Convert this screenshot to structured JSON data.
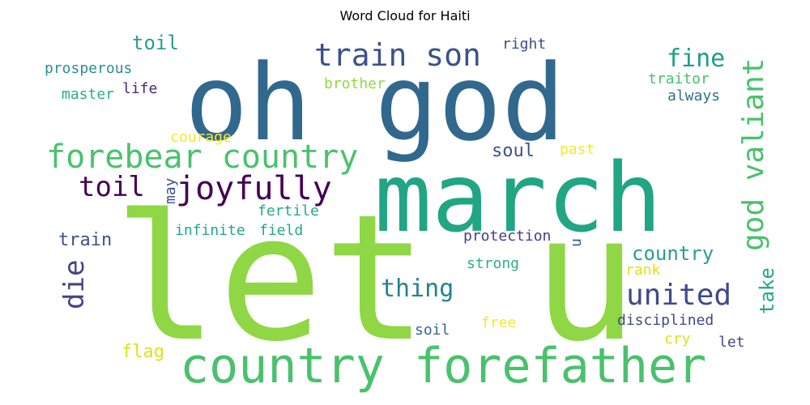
{
  "chart_data": {
    "type": "wordcloud",
    "title": "Word Cloud for Haiti",
    "words": [
      {
        "text": "let u",
        "color": "#8fd744"
      },
      {
        "text": "oh god",
        "color": "#31688e"
      },
      {
        "text": "march",
        "color": "#21a585"
      },
      {
        "text": "country forefather",
        "color": "#4ac16d"
      },
      {
        "text": "forebear country",
        "color": "#4ac16d"
      },
      {
        "text": "god valiant",
        "color": "#4ac16d"
      },
      {
        "text": "train son",
        "color": "#3b528b"
      },
      {
        "text": "joyfully",
        "color": "#440154"
      },
      {
        "text": "toil",
        "color": "#440154"
      },
      {
        "text": "united",
        "color": "#3e4a89"
      },
      {
        "text": "fine",
        "color": "#1f9e89"
      },
      {
        "text": "thing",
        "color": "#26828e"
      },
      {
        "text": "die",
        "color": "#414487"
      },
      {
        "text": "country",
        "color": "#2a9d8f"
      },
      {
        "text": "take",
        "color": "#23a983"
      },
      {
        "text": "toil",
        "color": "#2a9d8f"
      },
      {
        "text": "soul",
        "color": "#3b528b"
      },
      {
        "text": "train",
        "color": "#3b528b"
      },
      {
        "text": "prosperous",
        "color": "#2a8f8e"
      },
      {
        "text": "master",
        "color": "#2ab07f"
      },
      {
        "text": "life",
        "color": "#482878"
      },
      {
        "text": "brother",
        "color": "#95d840"
      },
      {
        "text": "right",
        "color": "#3e4a89"
      },
      {
        "text": "traitor",
        "color": "#4ac16d"
      },
      {
        "text": "always",
        "color": "#2c728e"
      },
      {
        "text": "courage",
        "color": "#fde725"
      },
      {
        "text": "past",
        "color": "#fde725"
      },
      {
        "text": "may",
        "color": "#3b528b"
      },
      {
        "text": "fertile",
        "color": "#25ab82"
      },
      {
        "text": "infinite",
        "color": "#22a884"
      },
      {
        "text": "field",
        "color": "#22a884"
      },
      {
        "text": "protection",
        "color": "#433e85"
      },
      {
        "text": "u",
        "color": "#3b528b"
      },
      {
        "text": "strong",
        "color": "#2bb07f"
      },
      {
        "text": "rank",
        "color": "#dde318"
      },
      {
        "text": "disciplined",
        "color": "#3e4a89"
      },
      {
        "text": "soil",
        "color": "#31688e"
      },
      {
        "text": "free",
        "color": "#fde725"
      },
      {
        "text": "cry",
        "color": "#dde318"
      },
      {
        "text": "flag",
        "color": "#dde318"
      },
      {
        "text": "let",
        "color": "#3e4a89"
      }
    ]
  }
}
